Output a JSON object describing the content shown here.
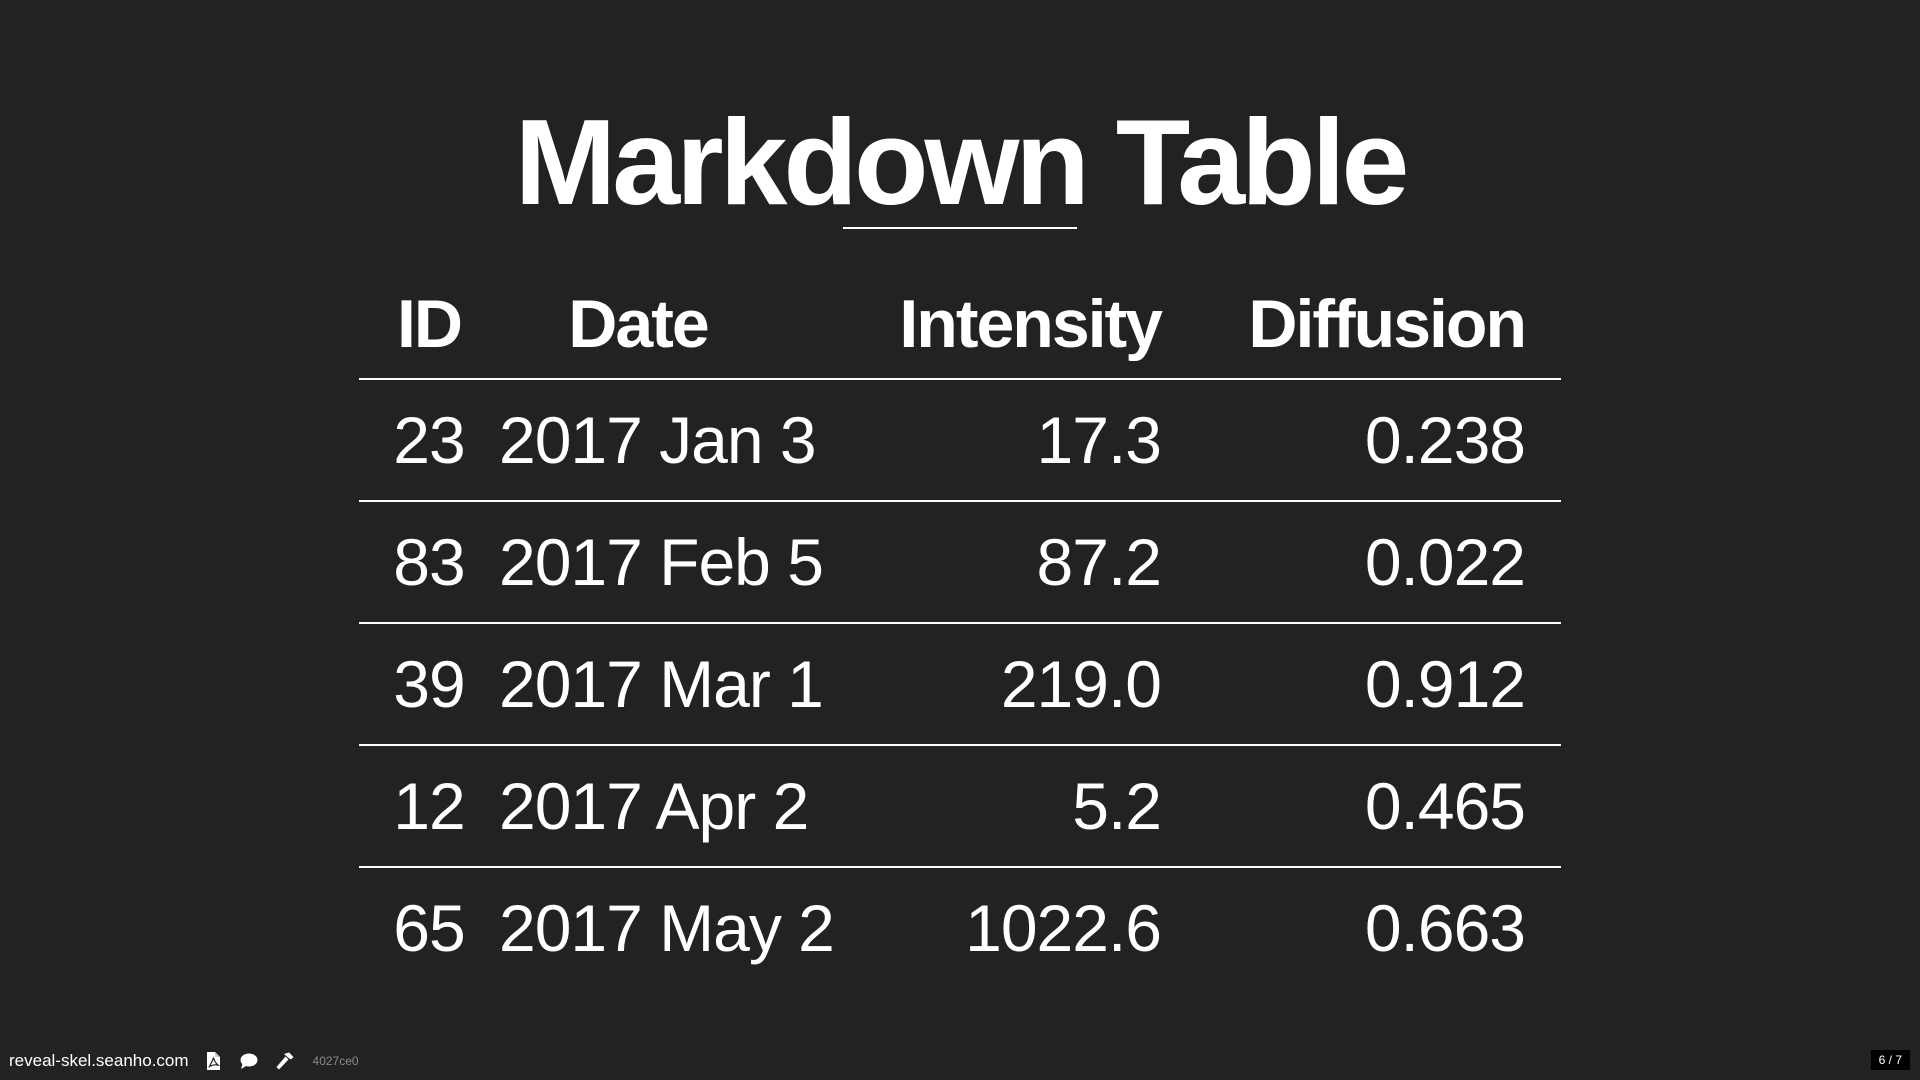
{
  "slide": {
    "title": "Markdown Table"
  },
  "table": {
    "headers": [
      "ID",
      "Date",
      "Intensity",
      "Diffusion"
    ],
    "rows": [
      [
        "23",
        "2017 Jan 3",
        "17.3",
        "0.238"
      ],
      [
        "83",
        "2017 Feb 5",
        "87.2",
        "0.022"
      ],
      [
        "39",
        "2017 Mar 1",
        "219.0",
        "0.912"
      ],
      [
        "12",
        "2017 Apr 2",
        "5.2",
        "0.465"
      ],
      [
        "65",
        "2017 May 2",
        "1022.6",
        "0.663"
      ]
    ]
  },
  "footer": {
    "site": "reveal-skel.seanho.com",
    "commit": "4027ce0",
    "icons": [
      "pdf-icon",
      "comment-icon",
      "hammer-icon"
    ]
  },
  "slide_number": "6 / 7",
  "colors": {
    "background": "#222222",
    "text": "#ffffff"
  }
}
